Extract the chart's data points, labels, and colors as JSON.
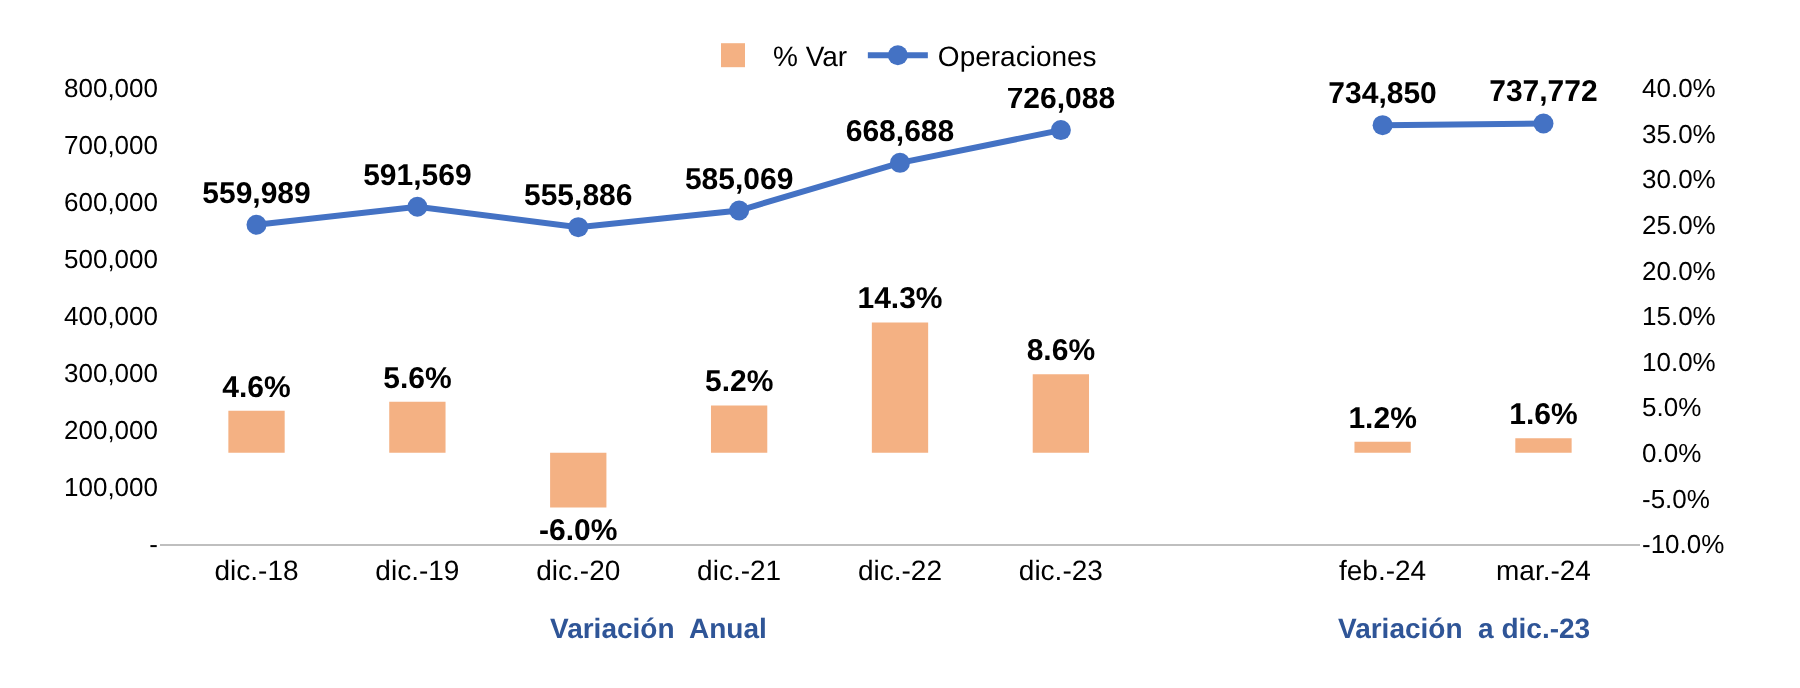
{
  "chart_data": {
    "type": "bar",
    "categories": [
      "dic.-18",
      "dic.-19",
      "dic.-20",
      "dic.-21",
      "dic.-22",
      "dic.-23",
      null,
      "feb.-24",
      "mar.-24"
    ],
    "series": [
      {
        "name": "% Var",
        "axis": "y2",
        "color": "#f4b183",
        "values": [
          4.6,
          5.6,
          -6.0,
          5.2,
          14.3,
          8.6,
          null,
          1.2,
          1.6
        ],
        "value_labels": [
          "4.6%",
          "5.6%",
          "-6.0%",
          "5.2%",
          "14.3%",
          "8.6%",
          null,
          "1.2%",
          "1.6%"
        ]
      },
      {
        "name": "Operaciones",
        "type": "line",
        "color": "#4472c4",
        "values": [
          559989,
          591569,
          555886,
          585069,
          668688,
          726088,
          null,
          734850,
          737772
        ],
        "value_labels": [
          "559,989",
          "591,569",
          "555,886",
          "585,069",
          "668,688",
          "726,088",
          null,
          "734,850",
          "737,772"
        ]
      }
    ],
    "ylim": [
      0,
      800000
    ],
    "yticks": [
      {
        "value": 0,
        "label": "-"
      },
      {
        "value": 100000,
        "label": "100,000"
      },
      {
        "value": 200000,
        "label": "200,000"
      },
      {
        "value": 300000,
        "label": "300,000"
      },
      {
        "value": 400000,
        "label": "400,000"
      },
      {
        "value": 500000,
        "label": "500,000"
      },
      {
        "value": 600000,
        "label": "600,000"
      },
      {
        "value": 700000,
        "label": "700,000"
      },
      {
        "value": 800000,
        "label": "800,000"
      }
    ],
    "y2lim": [
      -10,
      40
    ],
    "y2ticks": [
      {
        "value": -10,
        "label": "-10.0%"
      },
      {
        "value": -5,
        "label": "-5.0%"
      },
      {
        "value": 0,
        "label": "0.0%"
      },
      {
        "value": 5,
        "label": "5.0%"
      },
      {
        "value": 10,
        "label": "10.0%"
      },
      {
        "value": 15,
        "label": "15.0%"
      },
      {
        "value": 20,
        "label": "20.0%"
      },
      {
        "value": 25,
        "label": "25.0%"
      },
      {
        "value": 30,
        "label": "30.0%"
      },
      {
        "value": 35,
        "label": "35.0%"
      },
      {
        "value": 40,
        "label": "40.0%"
      }
    ],
    "annotations": [
      "Variación  Anual",
      "Variación  a dic.-23"
    ],
    "legend": "top",
    "marker": "circle",
    "line_style": "solid"
  }
}
